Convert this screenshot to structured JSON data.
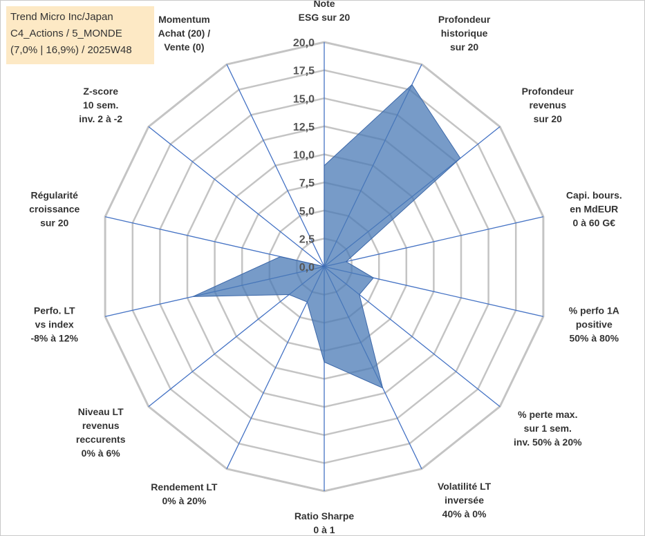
{
  "title_lines": [
    "Trend Micro Inc/Japan",
    "C4_Actions / 5_MONDE",
    "(7,0% | 16,9%) / 2025W48"
  ],
  "colors": {
    "fill": "#4a7ab5",
    "stroke": "#3a66a8",
    "grid": "#c4c4c4",
    "axis": "#4472c4",
    "title_box": "#fde9c5"
  },
  "chart_data": {
    "type": "radar",
    "r_range": [
      0,
      20
    ],
    "grid": true,
    "ticks": [
      {
        "value": 0,
        "label": "0,0"
      },
      {
        "value": 2.5,
        "label": "2,5"
      },
      {
        "value": 5,
        "label": "5,0"
      },
      {
        "value": 7.5,
        "label": "7,5"
      },
      {
        "value": 10,
        "label": "10,0"
      },
      {
        "value": 12.5,
        "label": "12,5"
      },
      {
        "value": 15,
        "label": "15,0"
      },
      {
        "value": 17.5,
        "label": "17,5"
      },
      {
        "value": 20,
        "label": "20,0"
      }
    ],
    "axes": [
      {
        "lines": [
          "Note",
          "ESG sur 20"
        ],
        "value": 9.0
      },
      {
        "lines": [
          "Profondeur",
          "historique",
          "sur 20"
        ],
        "value": 18.0
      },
      {
        "lines": [
          "Profondeur",
          "revenus",
          "sur 20"
        ],
        "value": 15.5
      },
      {
        "lines": [
          "Capi. bours.",
          "en MdEUR",
          "0 à 60 G€"
        ],
        "value": 2.0
      },
      {
        "lines": [
          "% perfo 1A",
          "positive",
          "50% à 80%"
        ],
        "value": 4.5
      },
      {
        "lines": [
          "% perte max.",
          "sur 1 sem.",
          "inv. 50% à 20%"
        ],
        "value": 4.0
      },
      {
        "lines": [
          "Volatilité LT",
          "inversée",
          "40% à 0%"
        ],
        "value": 12.0
      },
      {
        "lines": [
          "Ratio Sharpe",
          "0 à 1"
        ],
        "value": 8.5
      },
      {
        "lines": [
          "Rendement LT",
          "0% à 20%"
        ],
        "value": 3.5
      },
      {
        "lines": [
          "Niveau LT",
          "revenus",
          "reccurents",
          "0% à 6%"
        ],
        "value": 4.0
      },
      {
        "lines": [
          "Perfo. LT",
          "vs index",
          "-8% à 12%"
        ],
        "value": 12.0
      },
      {
        "lines": [
          "Régularité",
          "croissance",
          "sur 20"
        ],
        "value": 4.0
      },
      {
        "lines": [
          "Z-score",
          "10 sem.",
          "inv. 2 à -2"
        ],
        "value": 0.0
      },
      {
        "lines": [
          "Momentum",
          "Achat (20) /",
          "Vente (0)"
        ],
        "value": 0.0
      }
    ]
  }
}
